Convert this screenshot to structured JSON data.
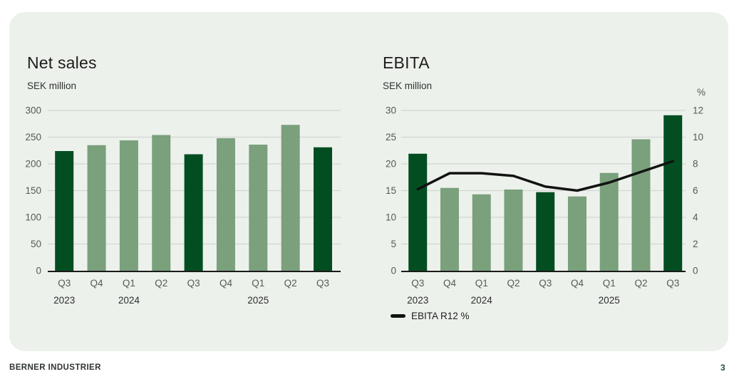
{
  "page": {
    "footer_brand": "BERNER INDUSTRIER",
    "page_number": "3"
  },
  "colors": {
    "panel_bg": "#edf1ec",
    "bar_dark_green": "#034e21",
    "bar_sage_green": "#7aa07c",
    "line_black": "#111311",
    "gridline": "#d2d7d1",
    "axis_line": "#1a1a18",
    "tick_text": "#565a56",
    "year_text": "#2c2e2c"
  },
  "chart_data": [
    {
      "id": "net-sales",
      "type": "bar",
      "title": "Net sales",
      "unit_label": "SEK million",
      "categories": [
        "Q3",
        "Q4",
        "Q1",
        "Q2",
        "Q3",
        "Q4",
        "Q1",
        "Q2",
        "Q3"
      ],
      "year_labels": [
        {
          "text": "2023",
          "index": 0
        },
        {
          "text": "2024",
          "index": 2
        },
        {
          "text": "2025",
          "index": 6
        }
      ],
      "values": [
        224,
        235,
        244,
        254,
        218,
        248,
        236,
        273,
        231
      ],
      "highlight_indices": [
        0,
        4,
        8
      ],
      "ylim": [
        0,
        300
      ],
      "yticks": [
        0,
        50,
        100,
        150,
        200,
        250,
        300
      ],
      "grid": true,
      "legend": null
    },
    {
      "id": "ebita",
      "type": "bar+line",
      "title": "EBITA",
      "unit_label": "SEK million",
      "right_axis_label": "%",
      "categories": [
        "Q3",
        "Q4",
        "Q1",
        "Q2",
        "Q3",
        "Q4",
        "Q1",
        "Q2",
        "Q3"
      ],
      "year_labels": [
        {
          "text": "2023",
          "index": 0
        },
        {
          "text": "2024",
          "index": 2
        },
        {
          "text": "2025",
          "index": 6
        }
      ],
      "series": [
        {
          "name": "EBITA",
          "type": "bar",
          "axis": "left",
          "values": [
            21.9,
            15.5,
            14.3,
            15.2,
            14.7,
            13.9,
            18.3,
            24.6,
            29.1
          ]
        },
        {
          "name": "EBITA R12 %",
          "type": "line",
          "axis": "right",
          "values": [
            6.1,
            7.3,
            7.3,
            7.1,
            6.3,
            6.0,
            6.6,
            7.4,
            8.2
          ]
        }
      ],
      "highlight_indices": [
        0,
        4,
        8
      ],
      "ylim_left": [
        0,
        30
      ],
      "yticks_left": [
        0,
        5,
        10,
        15,
        20,
        25,
        30
      ],
      "ylim_right": [
        0,
        12
      ],
      "yticks_right": [
        0,
        2,
        4,
        6,
        8,
        10,
        12
      ],
      "grid": true,
      "legend": {
        "label": "EBITA R12 %"
      }
    }
  ]
}
